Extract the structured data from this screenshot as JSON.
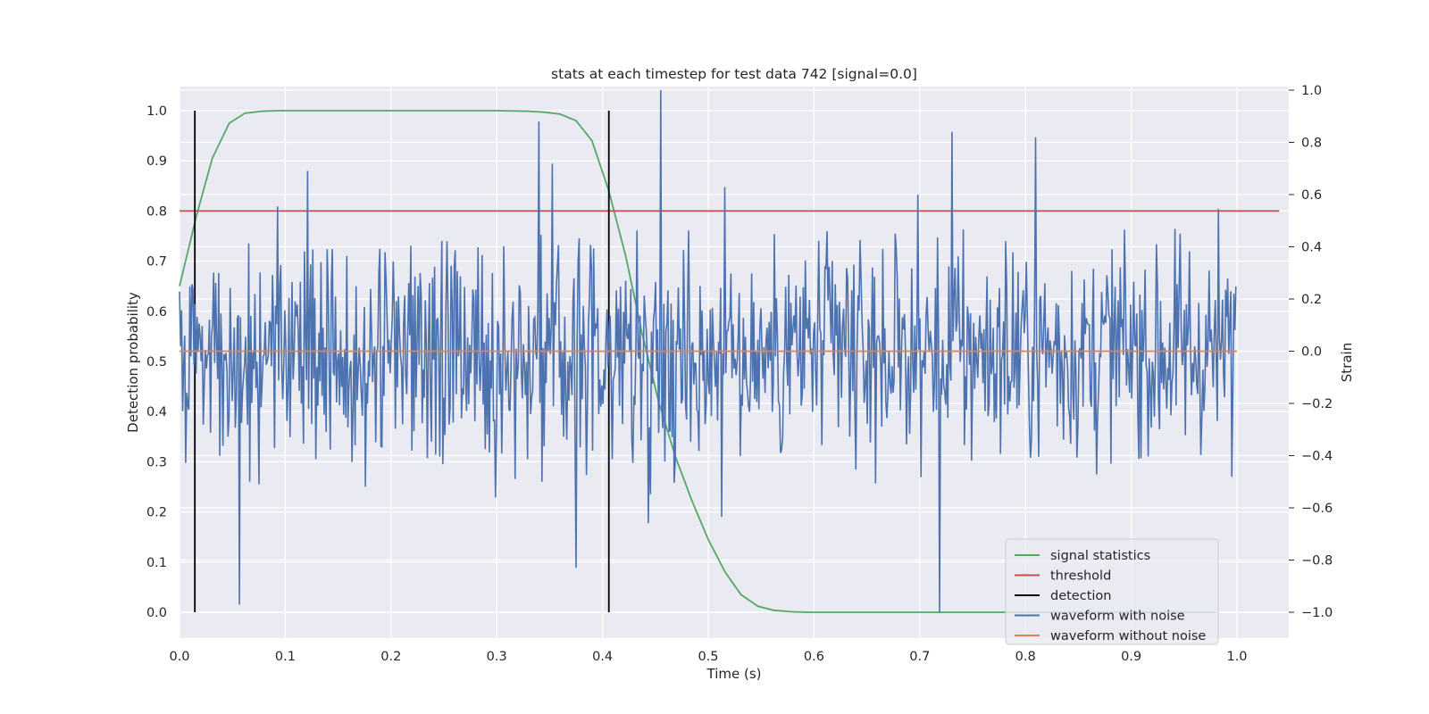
{
  "chart_data": {
    "type": "line",
    "title": "stats at each timestep for test data 742 [signal=0.0]",
    "xlabel": "Time (s)",
    "ylabel": "Detection probability",
    "y2label": "Strain",
    "xlim": [
      0.0,
      1.05
    ],
    "ylim": [
      -0.045,
      1.045
    ],
    "y2lim": [
      -1.09,
      1.0
    ],
    "xticks": [
      "0.0",
      "0.1",
      "0.2",
      "0.3",
      "0.4",
      "0.5",
      "0.6",
      "0.7",
      "0.8",
      "0.9",
      "1.0"
    ],
    "yticks": [
      "0.0",
      "0.1",
      "0.2",
      "0.3",
      "0.4",
      "0.5",
      "0.6",
      "0.7",
      "0.8",
      "0.9",
      "1.0"
    ],
    "y2ticks": [
      "−1.0",
      "−0.8",
      "−0.6",
      "−0.4",
      "−0.2",
      "0.0",
      "0.2",
      "0.4",
      "0.6",
      "0.8",
      "1.0"
    ],
    "grid": true,
    "legend_position": "lower-right",
    "series": [
      {
        "name": "signal statistics",
        "color": "#55a868",
        "axis": "left",
        "x": [
          0.0,
          0.016,
          0.031,
          0.047,
          0.062,
          0.078,
          0.094,
          0.109,
          0.125,
          0.2,
          0.3,
          0.33,
          0.345,
          0.36,
          0.375,
          0.39,
          0.406,
          0.422,
          0.437,
          0.453,
          0.469,
          0.484,
          0.5,
          0.516,
          0.531,
          0.547,
          0.562,
          0.578,
          0.594,
          0.65,
          0.75,
          0.85,
          0.98
        ],
        "y": [
          0.65,
          0.79,
          0.905,
          0.975,
          0.995,
          0.999,
          1.0,
          1.0,
          1.0,
          1.0,
          1.0,
          0.999,
          0.997,
          0.993,
          0.98,
          0.94,
          0.84,
          0.71,
          0.56,
          0.42,
          0.31,
          0.225,
          0.145,
          0.08,
          0.035,
          0.012,
          0.004,
          0.001,
          0.0,
          0.0,
          0.0,
          0.0,
          0.0
        ]
      },
      {
        "name": "threshold",
        "color": "#c44e52",
        "axis": "left",
        "x": [
          0.0,
          1.04
        ],
        "y": [
          0.8,
          0.8
        ]
      },
      {
        "name": "detection",
        "color": "#000000",
        "axis": "left",
        "segments": [
          {
            "x": 0.0145,
            "y0": 0.0,
            "y1": 1.0
          },
          {
            "x": 0.406,
            "y0": 0.0,
            "y1": 1.0
          }
        ]
      },
      {
        "name": "waveform with noise",
        "color": "#4c72b0",
        "axis": "right",
        "x_start": 0.0,
        "x_end": 0.9990234375,
        "n_points": 1024,
        "y_range": [
          -1.0,
          1.0
        ],
        "annotated_extremes": [
          {
            "x": 0.455,
            "y": 1.0
          },
          {
            "x": 0.719,
            "y": -1.0
          },
          {
            "x": 0.057,
            "y": -0.97
          },
          {
            "x": 0.34,
            "y": 0.88
          },
          {
            "x": 0.73,
            "y": 0.84
          },
          {
            "x": 0.81,
            "y": 0.82
          },
          {
            "x": 0.375,
            "y": -0.83
          }
        ]
      },
      {
        "name": "waveform without noise",
        "color": "#dd8452",
        "axis": "right",
        "x": [
          0.0,
          1.0
        ],
        "y": [
          0.0,
          0.0
        ]
      }
    ]
  }
}
